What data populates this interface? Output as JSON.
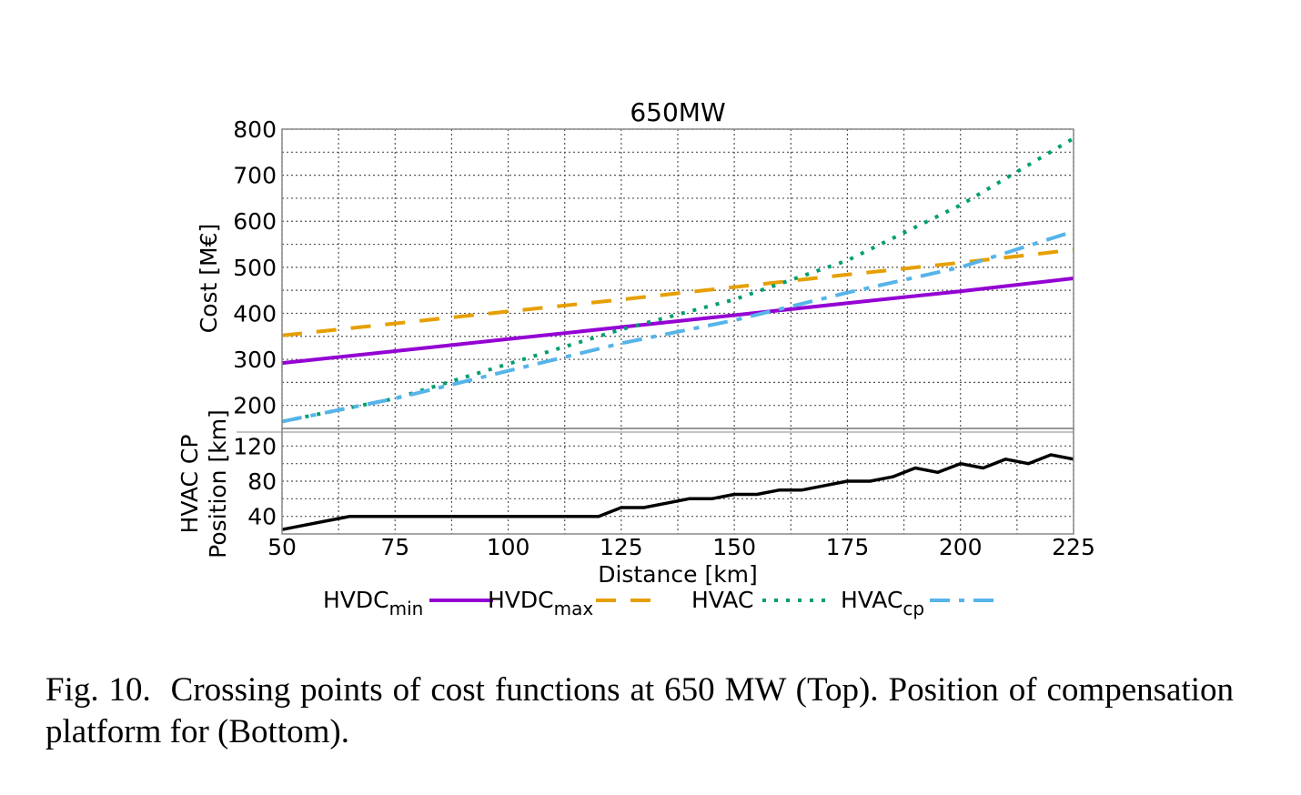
{
  "chart_data": [
    {
      "type": "line",
      "title": "650MW",
      "xlabel": "",
      "ylabel": "Cost [M€]",
      "xlim": [
        50,
        225
      ],
      "ylim": [
        150,
        800
      ],
      "yticks": [
        200,
        300,
        400,
        500,
        600,
        700,
        800
      ],
      "grid": true,
      "x": [
        50,
        75,
        100,
        125,
        150,
        175,
        200,
        225
      ],
      "series": [
        {
          "key": "hvdc_min",
          "name": "HVDC",
          "sub": "min",
          "color": "#9400d3",
          "dash": "solid",
          "values": [
            292,
            318,
            344,
            370,
            396,
            422,
            448,
            476
          ]
        },
        {
          "key": "hvdc_max",
          "name": "HVDC",
          "sub": "max",
          "color": "#e69f00",
          "dash": "long",
          "values": [
            352,
            378,
            404,
            430,
            457,
            484,
            510,
            538
          ]
        },
        {
          "key": "hvac",
          "name": "HVAC",
          "sub": "",
          "color": "#009e73",
          "dash": "dotted",
          "values": [
            165,
            215,
            290,
            365,
            430,
            515,
            635,
            780
          ]
        },
        {
          "key": "hvac_cp",
          "name": "HVAC",
          "sub": "cp",
          "color": "#56b4e9",
          "dash": "dashdot",
          "values": [
            165,
            215,
            275,
            335,
            385,
            445,
            500,
            578
          ]
        }
      ]
    },
    {
      "type": "line",
      "title": "",
      "xlabel": "Distance [km]",
      "ylabel": [
        "HVAC CP",
        "Position [km]"
      ],
      "xlim": [
        50,
        225
      ],
      "ylim": [
        20,
        140
      ],
      "yticks": [
        40,
        80,
        120
      ],
      "xticks": [
        50,
        75,
        100,
        125,
        150,
        175,
        200,
        225
      ],
      "grid": true,
      "series": [
        {
          "key": "cp_position",
          "name": "",
          "color": "#000000",
          "dash": "solid",
          "x": [
            50,
            55,
            60,
            65,
            70,
            75,
            80,
            85,
            90,
            95,
            100,
            105,
            110,
            115,
            120,
            125,
            130,
            135,
            140,
            145,
            150,
            155,
            160,
            165,
            170,
            175,
            180,
            185,
            190,
            195,
            200,
            205,
            210,
            215,
            220,
            225
          ],
          "values": [
            25,
            30,
            35,
            40,
            40,
            40,
            40,
            40,
            40,
            40,
            40,
            40,
            40,
            40,
            40,
            50,
            50,
            55,
            60,
            60,
            65,
            65,
            70,
            70,
            75,
            80,
            80,
            85,
            95,
            90,
            100,
            95,
            105,
            100,
            110,
            105
          ]
        }
      ]
    }
  ],
  "legend": {
    "placement": "bottom",
    "entries": [
      {
        "name": "HVDC",
        "sub": "min",
        "color": "#9400d3",
        "dash": "solid"
      },
      {
        "name": "HVDC",
        "sub": "max",
        "color": "#e69f00",
        "dash": "long"
      },
      {
        "name": "HVAC",
        "sub": "",
        "color": "#009e73",
        "dash": "dotted"
      },
      {
        "name": "HVAC",
        "sub": "cp",
        "color": "#56b4e9",
        "dash": "dashdot"
      }
    ]
  },
  "caption": {
    "label": "Fig. 10.",
    "text": "Crossing points of cost functions at 650 MW (Top). Position of compensation platform for (Bottom)."
  }
}
